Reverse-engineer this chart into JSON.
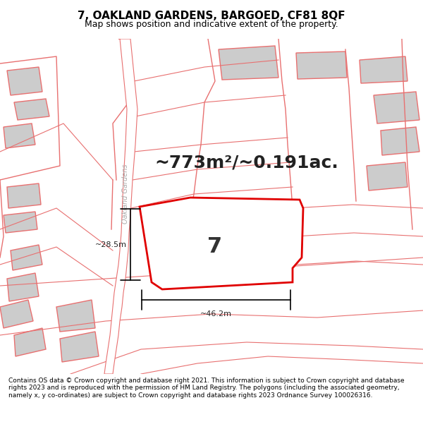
{
  "title_line1": "7, OAKLAND GARDENS, BARGOED, CF81 8QF",
  "title_line2": "Map shows position and indicative extent of the property.",
  "area_text": "~773m²/~0.191ac.",
  "plot_number": "7",
  "dim_width": "~46.2m",
  "dim_height": "~28.5m",
  "street_label": "Oakland Gardens",
  "footer_text": "Contains OS data © Crown copyright and database right 2021. This information is subject to Crown copyright and database rights 2023 and is reproduced with the permission of HM Land Registry. The polygons (including the associated geometry, namely x, y co-ordinates) are subject to Crown copyright and database rights 2023 Ordnance Survey 100026316.",
  "bg_color": "#f0f0f0",
  "map_bg": "#f5f5f5",
  "plot_fill": "#ffffff",
  "plot_edge": "#e00000",
  "other_edge": "#e87070",
  "building_fill": "#cccccc",
  "road_fill": "#ffffff",
  "title_bg": "#ffffff",
  "footer_bg": "#ffffff"
}
